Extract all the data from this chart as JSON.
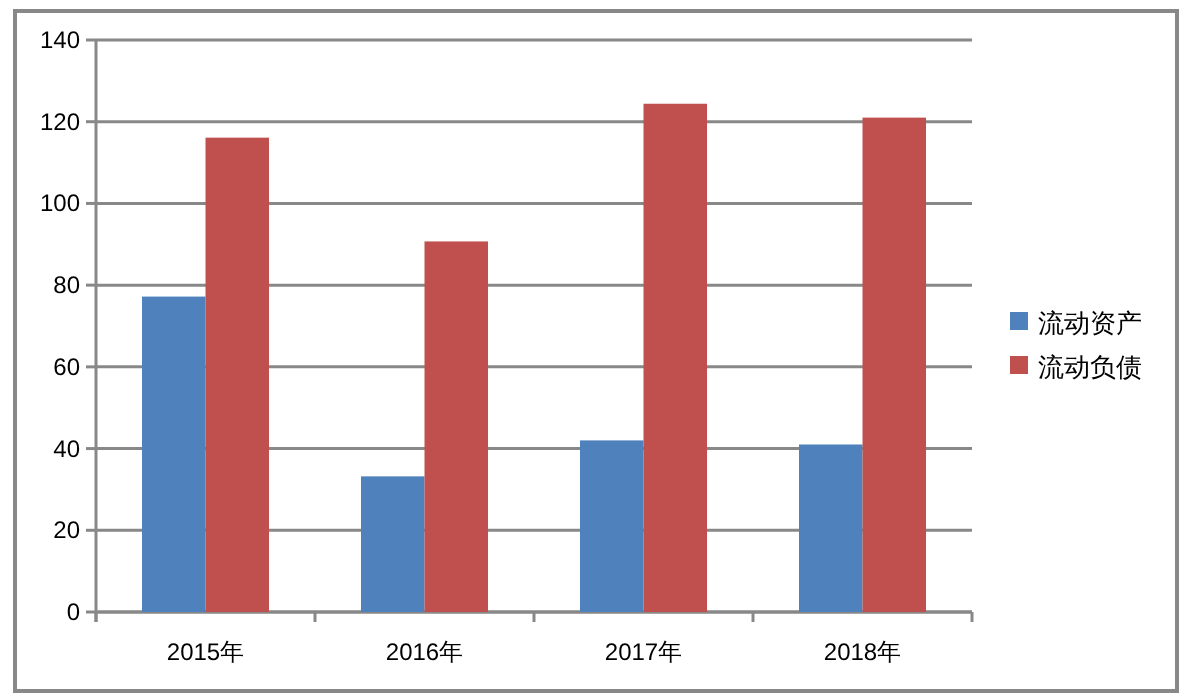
{
  "chart_data": {
    "type": "bar",
    "categories": [
      "2015年",
      "2016年",
      "2017年",
      "2018年"
    ],
    "series": [
      {
        "name": "流动资产",
        "color": "#4f81bd",
        "values": [
          77.2,
          33.2,
          42.0,
          41.0
        ]
      },
      {
        "name": "流动负债",
        "color": "#c0504d",
        "values": [
          116.1,
          90.7,
          124.4,
          121.0
        ]
      }
    ],
    "ylim": [
      0,
      140
    ],
    "yticks": [
      0,
      20,
      40,
      60,
      80,
      100,
      120,
      140
    ],
    "grid": "y",
    "legend": "right"
  }
}
